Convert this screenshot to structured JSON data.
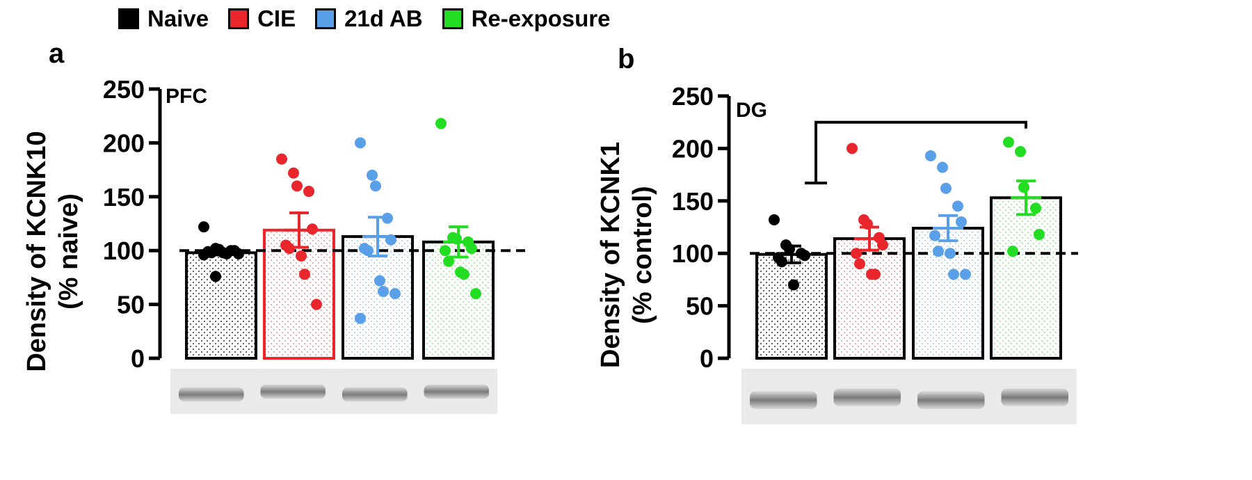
{
  "legend": [
    {
      "label": "Naive",
      "color": "#000000"
    },
    {
      "label": "CIE",
      "color": "#e8262c"
    },
    {
      "label": "21d AB",
      "color": "#5aa0e8"
    },
    {
      "label": "Re-exposure",
      "color": "#22dd22"
    }
  ],
  "chart_data": [
    {
      "type": "bar",
      "panel_label": "a",
      "region_label": "PFC",
      "ylabel_line1": "Density of KCNK10",
      "ylabel_line2": "(% naive)",
      "ylim": [
        0,
        250
      ],
      "yticks": [
        0,
        50,
        100,
        150,
        200,
        250
      ],
      "reference_line": 100,
      "categories": [
        "Naive",
        "CIE",
        "21d AB",
        "Re-exposure"
      ],
      "values": [
        98,
        119,
        113,
        108
      ],
      "sem": [
        2,
        16,
        18,
        14
      ],
      "points": [
        [
          122,
          102,
          101,
          100,
          100,
          99,
          98,
          98,
          97,
          97,
          96,
          76
        ],
        [
          185,
          172,
          160,
          155,
          120,
          105,
          102,
          95,
          78,
          50
        ],
        [
          200,
          170,
          160,
          130,
          110,
          102,
          100,
          72,
          62,
          60,
          37
        ],
        [
          218,
          112,
          111,
          108,
          102,
          100,
          90,
          80,
          78,
          60
        ]
      ]
    },
    {
      "type": "bar",
      "panel_label": "b",
      "region_label": "DG",
      "ylabel_line1": "Density of KCNK1",
      "ylabel_line2": "(% control)",
      "ylim": [
        0,
        250
      ],
      "yticks": [
        0,
        50,
        100,
        150,
        200,
        250
      ],
      "reference_line": 100,
      "categories": [
        "Naive",
        "CIE",
        "21d AB",
        "Re-exposure"
      ],
      "values": [
        99,
        114,
        124,
        153
      ],
      "sem": [
        8,
        11,
        12,
        16
      ],
      "points": [
        [
          132,
          108,
          104,
          100,
          98,
          96,
          92,
          70
        ],
        [
          200,
          132,
          128,
          115,
          108,
          100,
          90,
          80,
          80
        ],
        [
          193,
          182,
          162,
          145,
          130,
          117,
          102,
          100,
          80,
          80
        ],
        [
          206,
          197,
          163,
          143,
          118,
          102
        ]
      ],
      "significance_bracket": {
        "from": 0,
        "to": 3
      }
    }
  ],
  "blots": [
    {
      "bands": 4
    },
    {
      "bands": 4
    }
  ]
}
